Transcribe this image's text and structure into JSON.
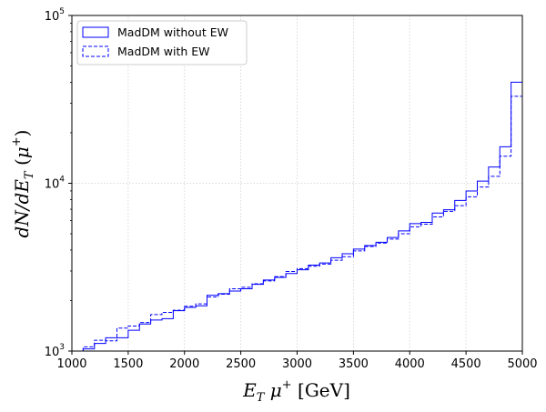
{
  "chart_data": {
    "type": "line",
    "xlabel": "E_T μ⁺ [GeV]",
    "ylabel": "dN/dE_T (μ⁺)",
    "xlim": [
      1000,
      5000
    ],
    "ylim": [
      1000,
      100000
    ],
    "yscale": "log",
    "grid": true,
    "legend_position": "top-left",
    "x_ticks": [
      "1000",
      "1500",
      "2000",
      "2500",
      "3000",
      "3500",
      "4000",
      "4500",
      "5000"
    ],
    "y_ticks": [
      {
        "base": "10",
        "exp": "3",
        "value": 1000
      },
      {
        "base": "10",
        "exp": "4",
        "value": 10000
      },
      {
        "base": "10",
        "exp": "5",
        "value": 100000
      }
    ],
    "bin_edges": [
      1000,
      1100,
      1200,
      1300,
      1400,
      1500,
      1600,
      1700,
      1800,
      1900,
      2000,
      2100,
      2200,
      2300,
      2400,
      2500,
      2600,
      2700,
      2800,
      2900,
      3000,
      3100,
      3200,
      3300,
      3400,
      3500,
      3600,
      3700,
      3800,
      3900,
      4000,
      4100,
      4200,
      4300,
      4400,
      4500,
      4600,
      4700,
      4800,
      4900,
      5000
    ],
    "series": [
      {
        "name": "MadDM without EW",
        "style": "solid",
        "color": "#0000ff",
        "values": [
          960,
          1030,
          1110,
          1200,
          1200,
          1330,
          1450,
          1530,
          1560,
          1740,
          1820,
          1860,
          2150,
          2200,
          2280,
          2350,
          2500,
          2650,
          2750,
          2900,
          3050,
          3250,
          3350,
          3600,
          3800,
          4050,
          4250,
          4450,
          4750,
          5200,
          5750,
          5850,
          6650,
          6950,
          7900,
          9000,
          10300,
          12500,
          16500,
          40000
        ]
      },
      {
        "name": "MadDM with EW",
        "style": "dashed",
        "color": "#0000ff",
        "values": [
          1000,
          1060,
          1160,
          1150,
          1370,
          1410,
          1480,
          1650,
          1700,
          1750,
          1850,
          1910,
          2100,
          2180,
          2350,
          2400,
          2520,
          2620,
          2780,
          2980,
          3100,
          3200,
          3300,
          3480,
          3650,
          3950,
          4200,
          4400,
          4650,
          5000,
          5500,
          5700,
          6300,
          6800,
          7350,
          8300,
          9500,
          11000,
          14500,
          33000
        ]
      }
    ]
  }
}
